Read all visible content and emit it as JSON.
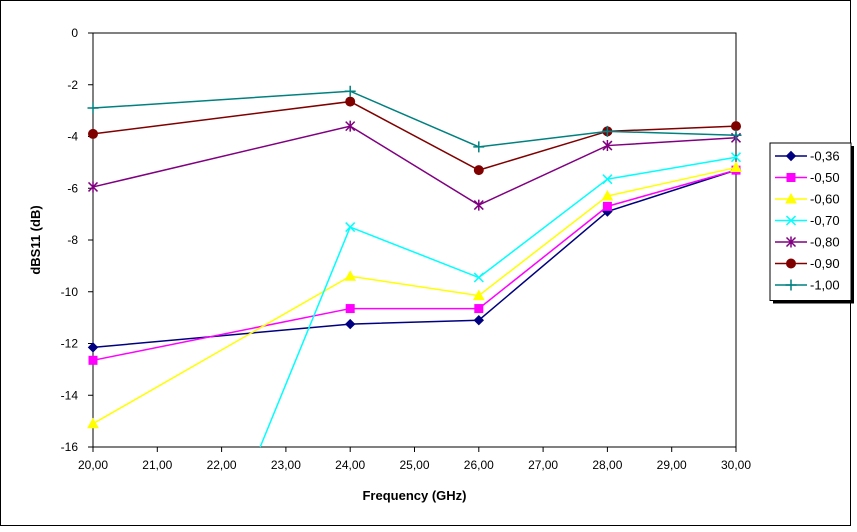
{
  "chart_data": {
    "type": "line",
    "xlabel": "Frequency (GHz)",
    "ylabel": "dBS11 (dB)",
    "xlim": [
      20,
      30
    ],
    "ylim": [
      -16,
      0
    ],
    "x_ticks": [
      "20,00",
      "21,00",
      "22,00",
      "23,00",
      "24,00",
      "25,00",
      "26,00",
      "27,00",
      "28,00",
      "29,00",
      "30,00"
    ],
    "y_ticks": [
      "0",
      "-2",
      "-4",
      "-6",
      "-8",
      "-10",
      "-12",
      "-14",
      "-16"
    ],
    "grid": false,
    "legend_position": "right",
    "series": [
      {
        "name": "-0,36",
        "color": "#000080",
        "marker": "diamond",
        "x": [
          20,
          24,
          26,
          28,
          30
        ],
        "y": [
          -12.15,
          -11.25,
          -11.1,
          -6.9,
          -5.3
        ]
      },
      {
        "name": "-0,50",
        "color": "#ff00ff",
        "marker": "square",
        "x": [
          20,
          24,
          26,
          28,
          30
        ],
        "y": [
          -12.65,
          -10.65,
          -10.65,
          -6.7,
          -5.3
        ]
      },
      {
        "name": "-0,60",
        "color": "#ffff00",
        "marker": "triangle",
        "x": [
          20,
          24,
          26,
          28,
          30
        ],
        "y": [
          -15.1,
          -9.4,
          -10.15,
          -6.3,
          -5.2
        ]
      },
      {
        "name": "-0,70",
        "color": "#00ffff",
        "marker": "x",
        "x": [
          22.6,
          24,
          26,
          28,
          30
        ],
        "y": [
          -16,
          -7.5,
          -9.45,
          -5.65,
          -4.8
        ]
      },
      {
        "name": "-0,80",
        "color": "#800080",
        "marker": "star",
        "x": [
          20,
          24,
          26,
          28,
          30
        ],
        "y": [
          -5.95,
          -3.6,
          -6.65,
          -4.35,
          -4.05
        ]
      },
      {
        "name": "-0,90",
        "color": "#800000",
        "marker": "circle",
        "x": [
          20,
          24,
          26,
          28,
          30
        ],
        "y": [
          -3.9,
          -2.65,
          -5.3,
          -3.8,
          -3.6
        ]
      },
      {
        "name": "-1,00",
        "color": "#008080",
        "marker": "plus",
        "x": [
          20,
          24,
          26,
          28,
          30
        ],
        "y": [
          -2.9,
          -2.25,
          -4.4,
          -3.8,
          -3.95
        ]
      }
    ]
  }
}
